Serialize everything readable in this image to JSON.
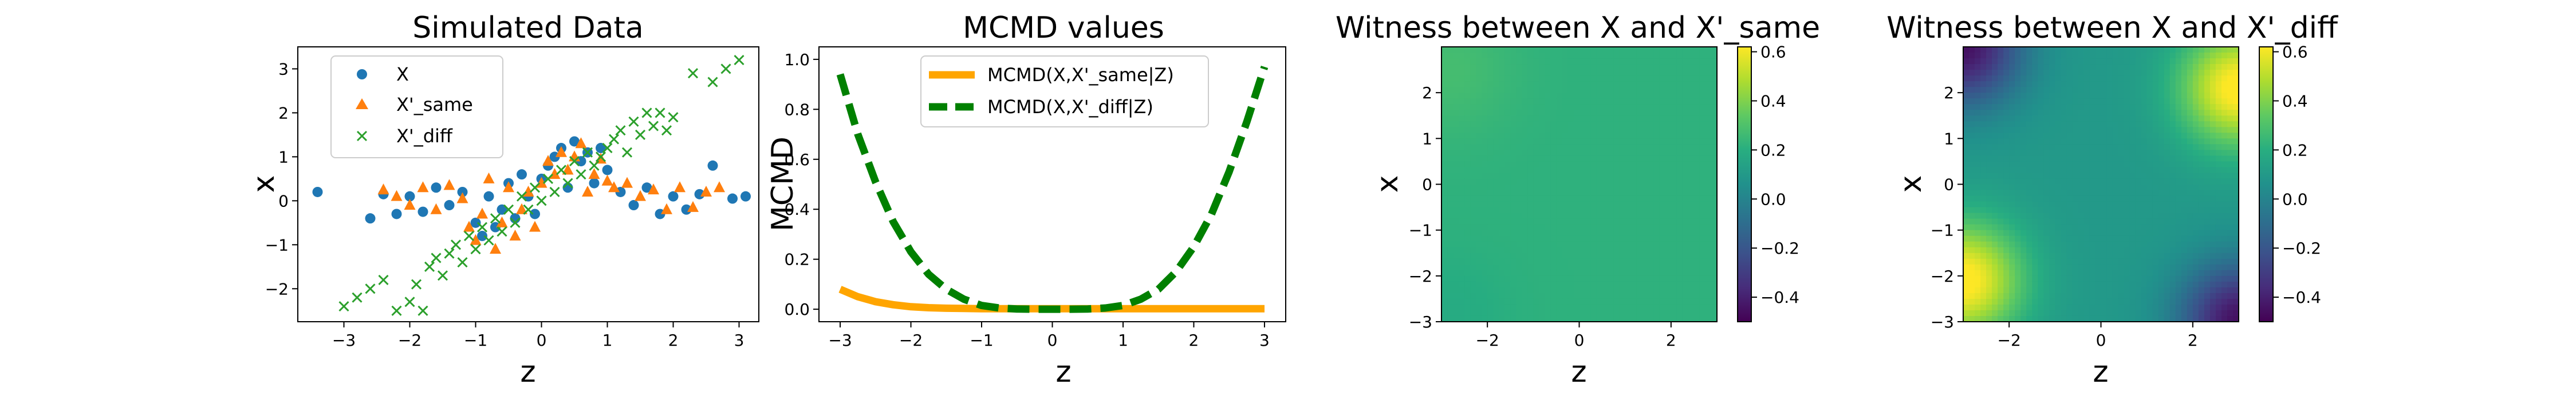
{
  "chart_data": [
    {
      "type": "scatter",
      "title": "Simulated Data",
      "xlabel": "z",
      "ylabel": "x",
      "xlim": [
        -3.7,
        3.3
      ],
      "ylim": [
        -2.75,
        3.5
      ],
      "xticks": [
        "-3",
        "-2",
        "-1",
        "0",
        "1",
        "2",
        "3"
      ],
      "yticks": [
        "-2",
        "-1",
        "0",
        "1",
        "2",
        "3"
      ],
      "legend_position": "top-left",
      "series": [
        {
          "name": "X",
          "color": "#1f77b4",
          "marker": "circle",
          "points": [
            [
              -3.4,
              0.2
            ],
            [
              -2.6,
              -0.4
            ],
            [
              -2.4,
              0.15
            ],
            [
              -2.2,
              -0.3
            ],
            [
              -2.0,
              0.1
            ],
            [
              -1.8,
              -0.25
            ],
            [
              -1.6,
              0.3
            ],
            [
              -1.4,
              -0.1
            ],
            [
              -1.2,
              0.2
            ],
            [
              -1.0,
              -0.5
            ],
            [
              -0.9,
              -0.8
            ],
            [
              -0.8,
              0.1
            ],
            [
              -0.7,
              -0.6
            ],
            [
              -0.6,
              -0.2
            ],
            [
              -0.5,
              0.4
            ],
            [
              -0.4,
              -0.4
            ],
            [
              -0.3,
              0.6
            ],
            [
              -0.2,
              0.1
            ],
            [
              -0.1,
              -0.3
            ],
            [
              0.0,
              0.5
            ],
            [
              0.1,
              0.8
            ],
            [
              0.2,
              1.0
            ],
            [
              0.3,
              1.2
            ],
            [
              0.4,
              0.3
            ],
            [
              0.5,
              1.35
            ],
            [
              0.6,
              0.9
            ],
            [
              0.7,
              1.1
            ],
            [
              0.8,
              0.4
            ],
            [
              0.9,
              1.2
            ],
            [
              1.0,
              0.7
            ],
            [
              1.2,
              0.2
            ],
            [
              1.4,
              -0.1
            ],
            [
              1.6,
              0.3
            ],
            [
              1.8,
              -0.3
            ],
            [
              2.0,
              0.1
            ],
            [
              2.2,
              -0.2
            ],
            [
              2.4,
              0.15
            ],
            [
              2.6,
              0.8
            ],
            [
              2.9,
              0.05
            ],
            [
              3.1,
              0.1
            ]
          ]
        },
        {
          "name": "X'_same",
          "color": "#ff7f0e",
          "marker": "triangle",
          "points": [
            [
              -2.4,
              0.25
            ],
            [
              -2.2,
              0.1
            ],
            [
              -2.0,
              -0.1
            ],
            [
              -1.8,
              0.3
            ],
            [
              -1.6,
              -0.2
            ],
            [
              -1.4,
              0.35
            ],
            [
              -1.2,
              0.05
            ],
            [
              -1.1,
              -0.6
            ],
            [
              -1.0,
              -0.9
            ],
            [
              -0.9,
              -0.3
            ],
            [
              -0.8,
              0.5
            ],
            [
              -0.7,
              -1.1
            ],
            [
              -0.6,
              -0.5
            ],
            [
              -0.5,
              0.3
            ],
            [
              -0.4,
              -0.8
            ],
            [
              -0.3,
              -0.2
            ],
            [
              -0.2,
              0.2
            ],
            [
              -0.1,
              -0.6
            ],
            [
              0.0,
              0.4
            ],
            [
              0.1,
              0.9
            ],
            [
              0.2,
              0.6
            ],
            [
              0.3,
              1.1
            ],
            [
              0.4,
              0.7
            ],
            [
              0.5,
              1.0
            ],
            [
              0.6,
              1.3
            ],
            [
              0.7,
              0.2
            ],
            [
              0.8,
              0.6
            ],
            [
              0.9,
              0.95
            ],
            [
              1.0,
              0.45
            ],
            [
              1.1,
              0.3
            ],
            [
              1.3,
              0.4
            ],
            [
              1.5,
              0.1
            ],
            [
              1.7,
              0.25
            ],
            [
              1.9,
              -0.2
            ],
            [
              2.1,
              0.3
            ],
            [
              2.3,
              -0.15
            ],
            [
              2.5,
              0.2
            ],
            [
              2.7,
              0.3
            ]
          ]
        },
        {
          "name": "X'_diff",
          "color": "#2ca02c",
          "marker": "x",
          "points": [
            [
              -3.0,
              -2.4
            ],
            [
              -2.8,
              -2.2
            ],
            [
              -2.6,
              -2.0
            ],
            [
              -2.4,
              -1.8
            ],
            [
              -2.2,
              -2.5
            ],
            [
              -2.0,
              -2.3
            ],
            [
              -1.9,
              -1.9
            ],
            [
              -1.8,
              -2.5
            ],
            [
              -1.7,
              -1.5
            ],
            [
              -1.6,
              -1.3
            ],
            [
              -1.5,
              -1.7
            ],
            [
              -1.4,
              -1.2
            ],
            [
              -1.3,
              -1.0
            ],
            [
              -1.2,
              -1.4
            ],
            [
              -1.1,
              -0.8
            ],
            [
              -1.0,
              -1.1
            ],
            [
              -0.9,
              -0.6
            ],
            [
              -0.8,
              -0.9
            ],
            [
              -0.7,
              -0.4
            ],
            [
              -0.6,
              -0.7
            ],
            [
              -0.5,
              -0.2
            ],
            [
              -0.4,
              -0.5
            ],
            [
              -0.3,
              0.1
            ],
            [
              -0.2,
              -0.2
            ],
            [
              -0.1,
              0.3
            ],
            [
              0.0,
              0.0
            ],
            [
              0.1,
              0.5
            ],
            [
              0.2,
              0.2
            ],
            [
              0.3,
              0.7
            ],
            [
              0.4,
              0.4
            ],
            [
              0.5,
              0.9
            ],
            [
              0.6,
              0.6
            ],
            [
              0.7,
              1.1
            ],
            [
              0.8,
              0.8
            ],
            [
              0.9,
              1.0
            ],
            [
              1.0,
              1.2
            ],
            [
              1.1,
              1.4
            ],
            [
              1.2,
              1.6
            ],
            [
              1.3,
              1.1
            ],
            [
              1.4,
              1.8
            ],
            [
              1.5,
              1.5
            ],
            [
              1.6,
              2.0
            ],
            [
              1.7,
              1.7
            ],
            [
              1.8,
              2.0
            ],
            [
              1.9,
              1.6
            ],
            [
              2.0,
              1.9
            ],
            [
              2.3,
              2.9
            ],
            [
              2.6,
              2.7
            ],
            [
              2.8,
              3.0
            ],
            [
              3.0,
              3.2
            ]
          ]
        }
      ]
    },
    {
      "type": "line",
      "title": "MCMD values",
      "xlabel": "z",
      "ylabel": "MCMD",
      "xlim": [
        -3.3,
        3.3
      ],
      "ylim": [
        -0.05,
        1.05
      ],
      "xticks": [
        "-3",
        "-2",
        "-1",
        "0",
        "1",
        "2",
        "3"
      ],
      "yticks": [
        "0.0",
        "0.2",
        "0.4",
        "0.6",
        "0.8",
        "1.0"
      ],
      "legend_position": "top-center",
      "x": [
        -3.0,
        -2.75,
        -2.5,
        -2.25,
        -2.0,
        -1.75,
        -1.5,
        -1.25,
        -1.0,
        -0.75,
        -0.5,
        -0.25,
        0.0,
        0.25,
        0.5,
        0.75,
        1.0,
        1.25,
        1.5,
        1.75,
        2.0,
        2.25,
        2.5,
        2.75,
        3.0
      ],
      "series": [
        {
          "name": "MCMD(X,X'_same|Z)",
          "color": "#ffa500",
          "style": "solid",
          "values": [
            0.08,
            0.05,
            0.03,
            0.018,
            0.01,
            0.006,
            0.004,
            0.003,
            0.002,
            0.002,
            0.002,
            0.002,
            0.002,
            0.002,
            0.002,
            0.002,
            0.002,
            0.002,
            0.002,
            0.002,
            0.002,
            0.002,
            0.002,
            0.002,
            0.002
          ]
        },
        {
          "name": "MCMD(X,X'_diff|Z)",
          "color": "#008000",
          "style": "dashed",
          "values": [
            0.94,
            0.7,
            0.51,
            0.35,
            0.23,
            0.14,
            0.08,
            0.04,
            0.015,
            0.005,
            0.001,
            0.0,
            0.0,
            0.0,
            0.001,
            0.005,
            0.015,
            0.04,
            0.08,
            0.15,
            0.25,
            0.38,
            0.55,
            0.75,
            0.97
          ]
        }
      ]
    },
    {
      "type": "heatmap",
      "title": "Witness between X and X'_same",
      "xlabel": "z",
      "ylabel": "x",
      "xlim": [
        -3,
        3
      ],
      "ylim": [
        -3,
        3
      ],
      "xticks": [
        "-2",
        "0",
        "2"
      ],
      "yticks": [
        "-3",
        "-2",
        "-1",
        "0",
        "1",
        "2"
      ],
      "colormap": "viridis",
      "vmin": -0.5,
      "vmax": 0.62,
      "colorbar_ticks": [
        "0.6",
        "0.4",
        "0.2",
        "0.0",
        "-0.2",
        "-0.4"
      ]
    },
    {
      "type": "heatmap",
      "title": "Witness between X and X'_diff",
      "xlabel": "z",
      "ylabel": "x",
      "xlim": [
        -3,
        3
      ],
      "ylim": [
        -3,
        3
      ],
      "xticks": [
        "-2",
        "0",
        "2"
      ],
      "yticks": [
        "-3",
        "-2",
        "-1",
        "0",
        "1",
        "2"
      ],
      "colormap": "viridis",
      "vmin": -0.5,
      "vmax": 0.62,
      "colorbar_ticks": [
        "0.6",
        "0.4",
        "0.2",
        "0.0",
        "-0.2",
        "-0.4"
      ]
    }
  ]
}
